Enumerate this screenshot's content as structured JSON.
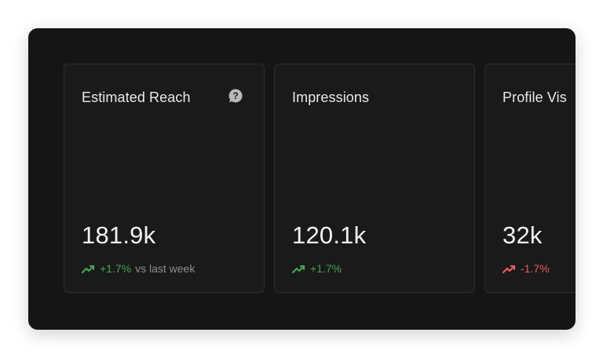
{
  "colors": {
    "positive": "#49a155",
    "negative": "#e35d5d",
    "panel_bg": "#151515",
    "card_bg": "#1a1a1a"
  },
  "cards": [
    {
      "title": "Estimated Reach",
      "icon": "help-icon",
      "value": "181.9k",
      "change": "+1.7%",
      "trend": "up",
      "change_suffix": "vs last week"
    },
    {
      "title": "Impressions",
      "value": "120.1k",
      "change": "+1.7%",
      "trend": "up"
    },
    {
      "title": "Profile Vis",
      "value": "32k",
      "change": "-1.7%",
      "trend": "down"
    }
  ]
}
